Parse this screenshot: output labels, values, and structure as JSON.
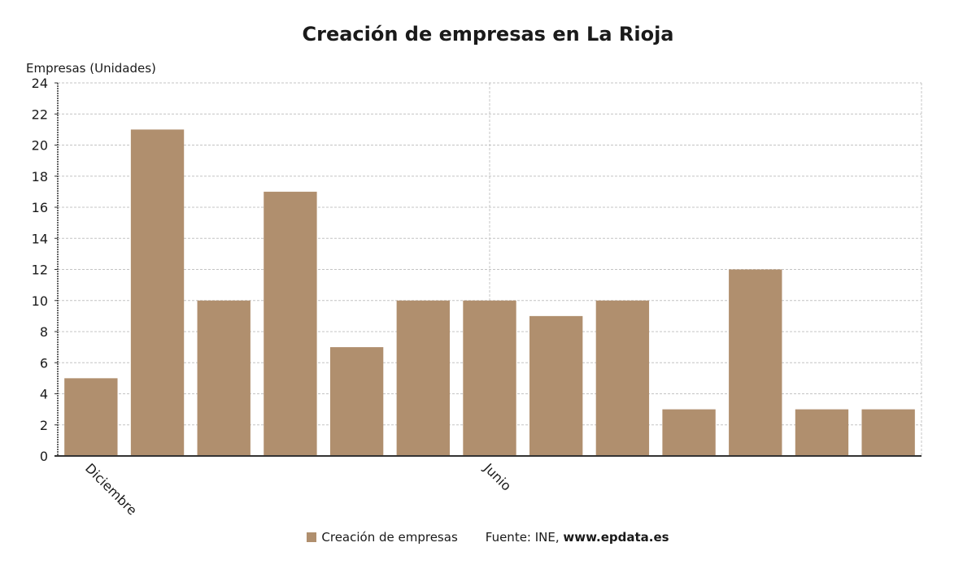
{
  "chart_data": {
    "type": "bar",
    "title": "Creación de empresas en La Rioja",
    "ylabel": "Empresas (Unidades)",
    "xlabel": "",
    "ylim": [
      0,
      24
    ],
    "yticks": [
      0,
      2,
      4,
      6,
      8,
      10,
      12,
      14,
      16,
      18,
      20,
      22,
      24
    ],
    "categories": [
      "Diciembre",
      "",
      "",
      "",
      "",
      "",
      "Junio",
      "",
      "",
      "",
      "",
      "",
      ""
    ],
    "series": [
      {
        "name": "Creación de empresas",
        "values": [
          5,
          21,
          10,
          17,
          7,
          10,
          10,
          9,
          10,
          3,
          12,
          3,
          3
        ],
        "color": "#b08f6e"
      }
    ],
    "grid": true,
    "legend": "bottom"
  },
  "source": {
    "label": "Fuente: INE,",
    "site": "www.epdata.es"
  }
}
